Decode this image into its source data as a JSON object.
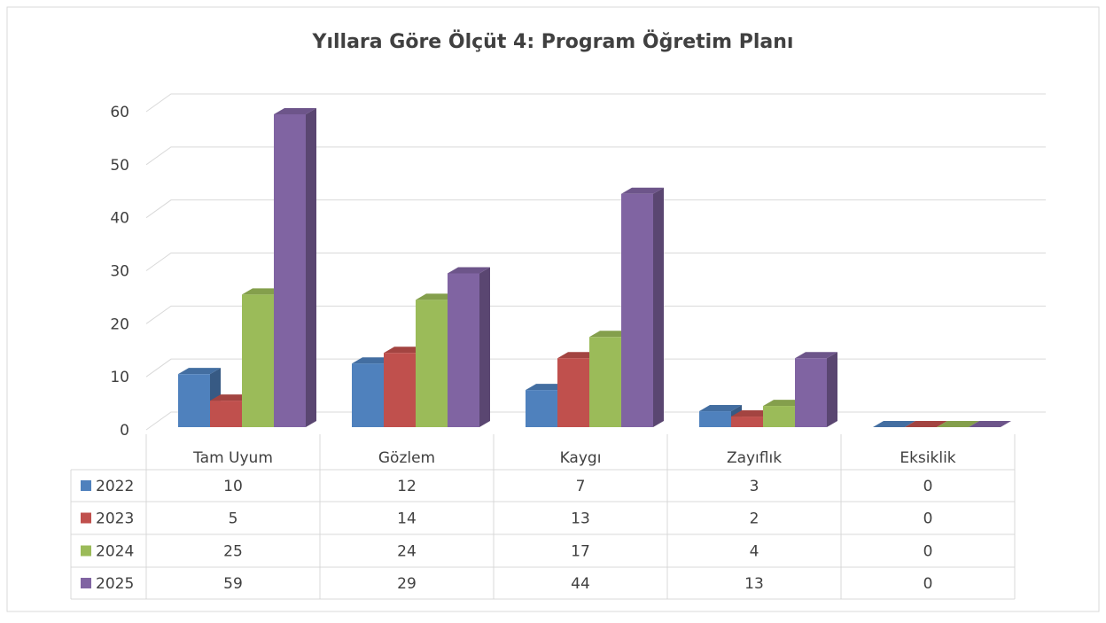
{
  "chart_data": {
    "type": "bar3d",
    "title": "Yıllara Göre Ölçüt 4: Program Öğretim Planı",
    "categories": [
      "Tam Uyum",
      "Gözlem",
      "Kaygı",
      "Zayıflık",
      "Eksiklik"
    ],
    "series": [
      {
        "name": "2022",
        "color": "#4f81bd",
        "values": [
          10,
          12,
          7,
          3,
          0
        ]
      },
      {
        "name": "2023",
        "color": "#c0504d",
        "values": [
          5,
          14,
          13,
          2,
          0
        ]
      },
      {
        "name": "2024",
        "color": "#9bbb59",
        "values": [
          25,
          24,
          17,
          4,
          0
        ]
      },
      {
        "name": "2025",
        "color": "#8064a2",
        "values": [
          59,
          29,
          44,
          13,
          0
        ]
      }
    ],
    "ylim": [
      0,
      60
    ],
    "yticks": [
      0,
      10,
      20,
      30,
      40,
      50,
      60
    ],
    "grid": true,
    "data_table": true
  }
}
